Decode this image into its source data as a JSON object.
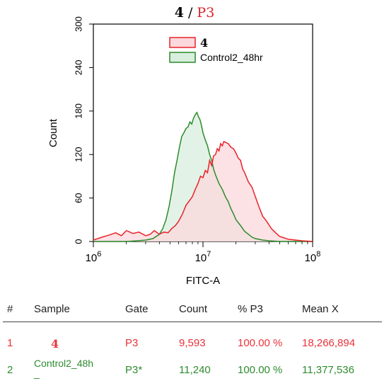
{
  "chart_data": {
    "type": "area",
    "title_parts": {
      "sample": "4",
      "sep": " / ",
      "gate": "P3"
    },
    "xlabel": "FITC-A",
    "ylabel": "Count",
    "x_scale": "log",
    "xlim": [
      1000000,
      100000000
    ],
    "ylim": [
      0,
      300
    ],
    "yticks": [
      "0",
      "60",
      "120",
      "180",
      "240",
      "300"
    ],
    "xticks": [
      {
        "base": "10",
        "exp": "6"
      },
      {
        "base": "10",
        "exp": "7"
      },
      {
        "base": "10",
        "exp": "8"
      }
    ],
    "legend": [
      {
        "label": "4",
        "color": "#e8232a",
        "fill": "#fbd8dc"
      },
      {
        "label": "Control2_48hr",
        "color": "#2a8c2a",
        "fill": "#d9eedf"
      }
    ],
    "series": [
      {
        "name": "4",
        "color": "#e8232a",
        "fill": "#fbd8dc",
        "x": [
          1000000,
          1200000,
          1400000,
          1600000,
          1800000,
          2000000,
          2300000,
          2600000,
          3000000,
          3300000,
          3600000,
          4000000,
          4400000,
          4800000,
          5200000,
          5600000,
          6000000,
          6500000,
          7000000,
          7500000,
          8000000,
          8500000,
          9000000,
          9500000,
          10000000,
          10500000,
          11000000,
          11500000,
          12000000,
          12500000,
          13000000,
          13500000,
          14000000,
          14500000,
          15000000,
          15500000,
          16000000,
          17000000,
          18000000,
          19000000,
          20000000,
          21000000,
          22000000,
          23000000,
          24000000,
          26000000,
          28000000,
          30000000,
          32000000,
          35000000,
          38000000,
          42000000,
          46000000,
          50000000,
          55000000,
          60000000,
          70000000,
          80000000,
          100000000
        ],
        "y": [
          2,
          6,
          9,
          12,
          8,
          15,
          11,
          13,
          8,
          10,
          15,
          10,
          13,
          12,
          18,
          22,
          28,
          38,
          50,
          56,
          62,
          72,
          80,
          90,
          88,
          98,
          95,
          112,
          105,
          118,
          120,
          128,
          125,
          135,
          132,
          138,
          137,
          135,
          130,
          128,
          122,
          115,
          112,
          100,
          95,
          82,
          75,
          62,
          50,
          35,
          28,
          18,
          12,
          7,
          5,
          3,
          2,
          1,
          0
        ]
      },
      {
        "name": "Control2_48hr",
        "color": "#2a8c2a",
        "fill": "#d9eedf",
        "x": [
          1000000,
          1500000,
          2000000,
          2500000,
          3000000,
          3500000,
          4000000,
          4300000,
          4600000,
          4900000,
          5200000,
          5500000,
          5800000,
          6100000,
          6400000,
          6700000,
          7000000,
          7300000,
          7600000,
          7900000,
          8200000,
          8500000,
          8800000,
          9100000,
          9400000,
          9700000,
          10000000,
          10500000,
          11000000,
          11500000,
          12000000,
          12500000,
          13000000,
          14000000,
          15000000,
          16000000,
          17000000,
          18000000,
          19000000,
          20000000,
          22000000,
          24000000,
          26000000,
          28000000,
          30000000,
          35000000,
          40000000,
          50000000,
          60000000,
          100000000
        ],
        "y": [
          0,
          0,
          0,
          1,
          2,
          4,
          10,
          18,
          30,
          48,
          70,
          95,
          112,
          130,
          145,
          150,
          156,
          158,
          165,
          162,
          170,
          175,
          178,
          172,
          168,
          160,
          150,
          140,
          132,
          120,
          112,
          100,
          92,
          80,
          72,
          62,
          55,
          45,
          38,
          30,
          22,
          14,
          10,
          6,
          4,
          2,
          1,
          0,
          0,
          0
        ]
      }
    ],
    "grid": false,
    "legend_position": "top-right"
  },
  "stats": {
    "headers": {
      "num": "#",
      "sample": "Sample",
      "gate": "Gate",
      "count": "Count",
      "pct": "% P3",
      "mean": "Mean X"
    },
    "rows": [
      {
        "num": "1",
        "sample": "4",
        "gate": "P3",
        "count": "9,593",
        "pct": "100.00 %",
        "mean": "18,266,894"
      },
      {
        "num": "2",
        "sample": "Control2_48h",
        "sample_tail": "_",
        "gate": "P3*",
        "count": "11,240",
        "pct": "100.00 %",
        "mean": "11,377,536"
      }
    ]
  }
}
